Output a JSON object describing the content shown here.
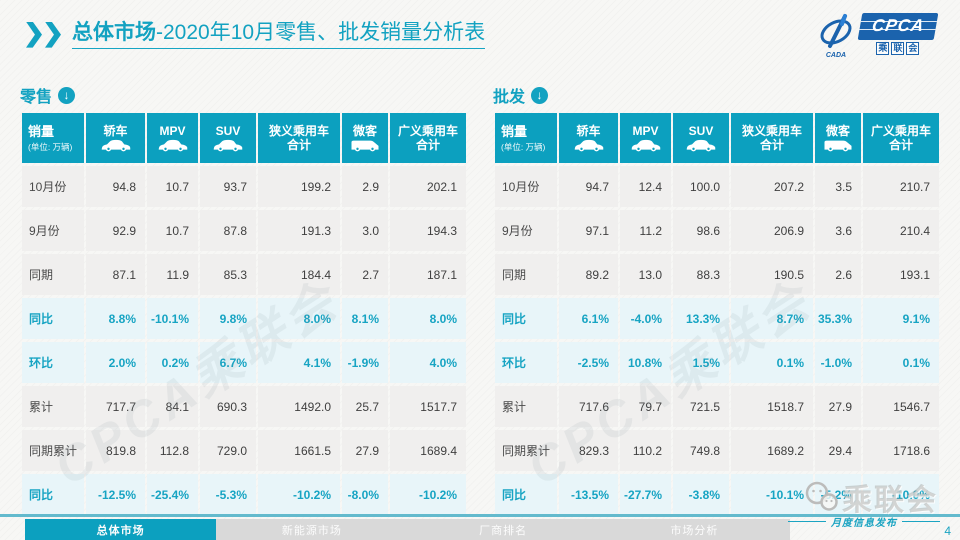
{
  "header": {
    "title_bold": "总体市场",
    "title_rest": "-2020年10月零售、批发销量分析表"
  },
  "logo": {
    "acronym": "CPCA",
    "name": "乘联会",
    "sub_label": "CADA"
  },
  "icons": {
    "down_arrow": "↓"
  },
  "table_columns": [
    {
      "label": "销量",
      "sublabel": "(单位: 万辆)",
      "icon": ""
    },
    {
      "label": "轿车",
      "icon": "car"
    },
    {
      "label": "MPV",
      "icon": "car"
    },
    {
      "label": "SUV",
      "icon": "car"
    },
    {
      "label": "狭义乘用车",
      "label2": "合计",
      "icon": ""
    },
    {
      "label": "微客",
      "icon": "van"
    },
    {
      "label": "广义乘用车",
      "label2": "合计",
      "icon": ""
    }
  ],
  "tables": [
    {
      "id": "retail",
      "title": "零售",
      "rows": [
        {
          "label": "10月份",
          "values": [
            "94.8",
            "10.7",
            "93.7",
            "199.2",
            "2.9",
            "202.1"
          ],
          "highlight": false
        },
        {
          "label": "9月份",
          "values": [
            "92.9",
            "10.7",
            "87.8",
            "191.3",
            "3.0",
            "194.3"
          ],
          "highlight": false
        },
        {
          "label": "同期",
          "values": [
            "87.1",
            "11.9",
            "85.3",
            "184.4",
            "2.7",
            "187.1"
          ],
          "highlight": false
        },
        {
          "label": "同比",
          "values": [
            "8.8%",
            "-10.1%",
            "9.8%",
            "8.0%",
            "8.1%",
            "8.0%"
          ],
          "highlight": true
        },
        {
          "label": "环比",
          "values": [
            "2.0%",
            "0.2%",
            "6.7%",
            "4.1%",
            "-1.9%",
            "4.0%"
          ],
          "highlight": true
        },
        {
          "label": "累计",
          "values": [
            "717.7",
            "84.1",
            "690.3",
            "1492.0",
            "25.7",
            "1517.7"
          ],
          "highlight": false
        },
        {
          "label": "同期累计",
          "values": [
            "819.8",
            "112.8",
            "729.0",
            "1661.5",
            "27.9",
            "1689.4"
          ],
          "highlight": false
        },
        {
          "label": "同比",
          "values": [
            "-12.5%",
            "-25.4%",
            "-5.3%",
            "-10.2%",
            "-8.0%",
            "-10.2%"
          ],
          "highlight": true
        }
      ]
    },
    {
      "id": "wholesale",
      "title": "批发",
      "rows": [
        {
          "label": "10月份",
          "values": [
            "94.7",
            "12.4",
            "100.0",
            "207.2",
            "3.5",
            "210.7"
          ],
          "highlight": false
        },
        {
          "label": "9月份",
          "values": [
            "97.1",
            "11.2",
            "98.6",
            "206.9",
            "3.6",
            "210.4"
          ],
          "highlight": false
        },
        {
          "label": "同期",
          "values": [
            "89.2",
            "13.0",
            "88.3",
            "190.5",
            "2.6",
            "193.1"
          ],
          "highlight": false
        },
        {
          "label": "同比",
          "values": [
            "6.1%",
            "-4.0%",
            "13.3%",
            "8.7%",
            "35.3%",
            "9.1%"
          ],
          "highlight": true
        },
        {
          "label": "环比",
          "values": [
            "-2.5%",
            "10.8%",
            "1.5%",
            "0.1%",
            "-1.0%",
            "0.1%"
          ],
          "highlight": true
        },
        {
          "label": "累计",
          "values": [
            "717.6",
            "79.7",
            "721.5",
            "1518.7",
            "27.9",
            "1546.7"
          ],
          "highlight": false
        },
        {
          "label": "同期累计",
          "values": [
            "829.3",
            "110.2",
            "749.8",
            "1689.2",
            "29.4",
            "1718.6"
          ],
          "highlight": false
        },
        {
          "label": "同比",
          "values": [
            "-13.5%",
            "-27.7%",
            "-3.8%",
            "-10.1%",
            "-5.2%",
            "-10.0%"
          ],
          "highlight": true
        }
      ]
    }
  ],
  "watermarks": {
    "diagonal": "CPCA乘联会",
    "wechat_label": "乘联会"
  },
  "footer": {
    "tabs": [
      {
        "label": "总体市场",
        "active": true
      },
      {
        "label": "新能源市场",
        "active": false
      },
      {
        "label": "厂商排名",
        "active": false
      },
      {
        "label": "市场分析",
        "active": false
      }
    ],
    "release_note": "月度信息发布",
    "page_number": "4"
  },
  "colors": {
    "accent_teal": "#0CA0BF",
    "highlight_row_bg": "#E8F5F9",
    "row_bg": "#F0EFEE",
    "logo_blue": "#1B63AD"
  }
}
